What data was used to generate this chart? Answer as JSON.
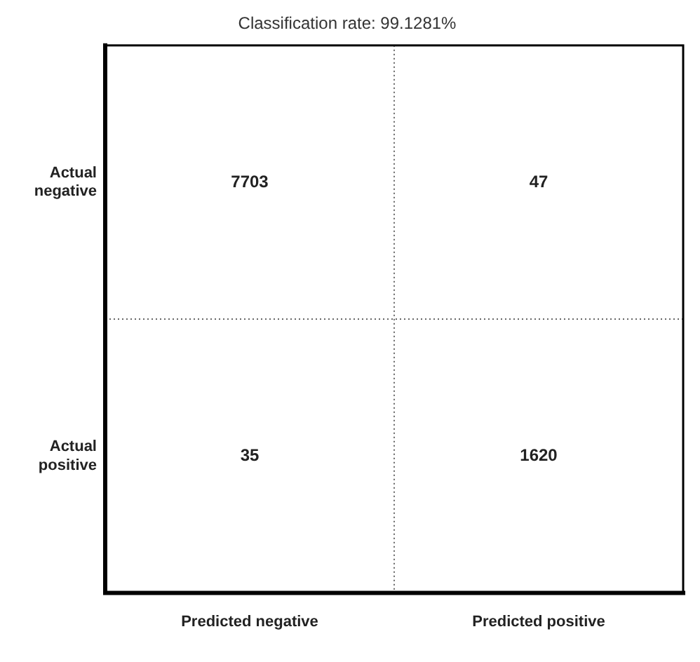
{
  "chart_data": {
    "type": "heatmap",
    "title": "Classification rate: 99.1281%",
    "categories": [
      "Predicted negative",
      "Predicted positive"
    ],
    "y_categories": [
      "Actual negative",
      "Actual positive"
    ],
    "cells": [
      [
        7703,
        47
      ],
      [
        35,
        1620
      ]
    ],
    "data_labels": true,
    "grid": true
  }
}
